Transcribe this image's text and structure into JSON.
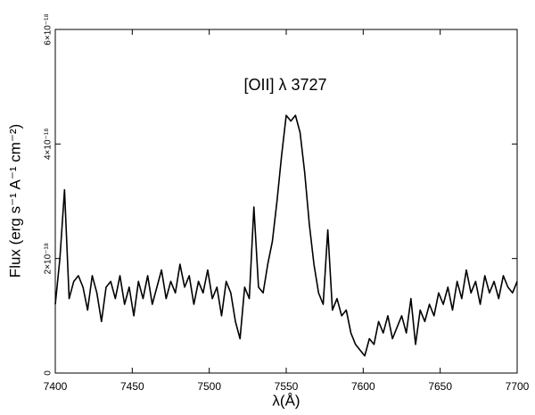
{
  "chart_data": {
    "type": "line",
    "xlabel": "λ(Å)",
    "ylabel": "Flux  (erg s⁻¹ A⁻¹ cm⁻²)",
    "annotation": "[OII] λ 3727",
    "xlim": [
      7400,
      7700
    ],
    "xticks": [
      7400,
      7450,
      7500,
      7550,
      7600,
      7650,
      7700
    ],
    "ylim": [
      0,
      6e-18
    ],
    "yticks": [
      0,
      {
        "value": 2e-18,
        "label": "2×10⁻¹⁸"
      },
      {
        "value": 4e-18,
        "label": "4×10⁻¹⁸"
      },
      {
        "value": 6e-18,
        "label": "6×10⁻¹⁸"
      }
    ],
    "color": "#000000",
    "x": [
      7400,
      7403,
      7406,
      7409,
      7412,
      7415,
      7418,
      7421,
      7424,
      7427,
      7430,
      7433,
      7436,
      7439,
      7442,
      7445,
      7448,
      7451,
      7454,
      7457,
      7460,
      7463,
      7466,
      7469,
      7472,
      7475,
      7478,
      7481,
      7484,
      7487,
      7490,
      7493,
      7496,
      7499,
      7502,
      7505,
      7508,
      7511,
      7514,
      7517,
      7520,
      7523,
      7526,
      7529,
      7532,
      7535,
      7538,
      7541,
      7544,
      7547,
      7550,
      7553,
      7556,
      7559,
      7562,
      7565,
      7568,
      7571,
      7574,
      7577,
      7580,
      7583,
      7586,
      7589,
      7592,
      7595,
      7598,
      7601,
      7604,
      7607,
      7610,
      7613,
      7616,
      7619,
      7622,
      7625,
      7628,
      7631,
      7634,
      7637,
      7640,
      7643,
      7646,
      7649,
      7652,
      7655,
      7658,
      7661,
      7664,
      7667,
      7670,
      7673,
      7676,
      7679,
      7682,
      7685,
      7688,
      7691,
      7694,
      7697,
      7700
    ],
    "values": [
      1.2e-18,
      2e-18,
      3.2e-18,
      1.3e-18,
      1.6e-18,
      1.7e-18,
      1.5e-18,
      1.1e-18,
      1.7e-18,
      1.4e-18,
      9e-19,
      1.5e-18,
      1.6e-18,
      1.3e-18,
      1.7e-18,
      1.2e-18,
      1.5e-18,
      1e-18,
      1.6e-18,
      1.3e-18,
      1.7e-18,
      1.2e-18,
      1.5e-18,
      1.8e-18,
      1.3e-18,
      1.6e-18,
      1.4e-18,
      1.9e-18,
      1.5e-18,
      1.7e-18,
      1.2e-18,
      1.6e-18,
      1.4e-18,
      1.8e-18,
      1.3e-18,
      1.5e-18,
      1e-18,
      1.6e-18,
      1.4e-18,
      9e-19,
      6e-19,
      1.5e-18,
      1.3e-18,
      2.9e-18,
      1.5e-18,
      1.4e-18,
      1.9e-18,
      2.3e-18,
      3e-18,
      3.8e-18,
      4.5e-18,
      4.4e-18,
      4.5e-18,
      4.2e-18,
      3.5e-18,
      2.6e-18,
      1.9e-18,
      1.4e-18,
      1.2e-18,
      2.5e-18,
      1.1e-18,
      1.3e-18,
      1e-18,
      1.1e-18,
      7e-19,
      5e-19,
      4e-19,
      3e-19,
      6e-19,
      5e-19,
      9e-19,
      7e-19,
      1e-18,
      6e-19,
      8e-19,
      1e-18,
      7e-19,
      1.3e-18,
      5e-19,
      1.1e-18,
      9e-19,
      1.2e-18,
      1e-18,
      1.4e-18,
      1.2e-18,
      1.5e-18,
      1.1e-18,
      1.6e-18,
      1.3e-18,
      1.8e-18,
      1.4e-18,
      1.6e-18,
      1.2e-18,
      1.7e-18,
      1.4e-18,
      1.6e-18,
      1.3e-18,
      1.7e-18,
      1.5e-18,
      1.4e-18,
      1.6e-18
    ]
  }
}
